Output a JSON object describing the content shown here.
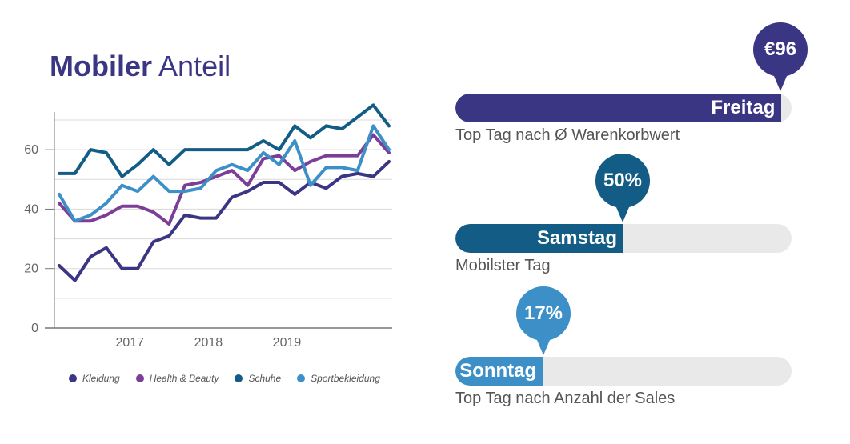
{
  "title": {
    "bold": "Mobiler",
    "light": "Anteil"
  },
  "chart_data": {
    "type": "line",
    "ylim": [
      0,
      70
    ],
    "yticks": [
      0,
      20,
      40,
      60
    ],
    "xticks": [
      {
        "label": "2017",
        "x": 2017.0
      },
      {
        "label": "2018",
        "x": 2018.0
      },
      {
        "label": "2019",
        "x": 2019.0
      }
    ],
    "x": [
      2016.1,
      2016.3,
      2016.5,
      2016.7,
      2016.9,
      2017.1,
      2017.3,
      2017.5,
      2017.7,
      2017.9,
      2018.1,
      2018.3,
      2018.5,
      2018.7,
      2018.9,
      2019.1,
      2019.3,
      2019.5,
      2019.7,
      2019.9,
      2020.1,
      2020.3
    ],
    "series": [
      {
        "name": "Kleidung",
        "color": "#3b3684",
        "values": [
          21,
          16,
          24,
          27,
          20,
          20,
          29,
          31,
          38,
          37,
          37,
          44,
          46,
          49,
          49,
          45,
          49,
          47,
          51,
          52,
          51,
          56
        ]
      },
      {
        "name": "Health & Beauty",
        "color": "#7c3f98",
        "values": [
          42,
          36,
          36,
          38,
          41,
          41,
          39,
          35,
          48,
          49,
          51,
          53,
          48,
          57,
          58,
          53,
          56,
          58,
          58,
          58,
          65,
          59
        ]
      },
      {
        "name": "Schuhe",
        "color": "#135c85",
        "values": [
          52,
          52,
          60,
          59,
          51,
          55,
          60,
          55,
          60,
          60,
          60,
          60,
          60,
          63,
          60,
          68,
          64,
          68,
          67,
          71,
          75,
          68
        ]
      },
      {
        "name": "Sportbekleidung",
        "color": "#3d8fc8",
        "values": [
          45,
          36,
          38,
          42,
          48,
          46,
          51,
          46,
          46,
          47,
          53,
          55,
          53,
          59,
          55,
          63,
          48,
          54,
          54,
          53,
          68,
          60
        ]
      }
    ]
  },
  "stats": [
    {
      "value": "€96",
      "bar_label": "Freitag",
      "caption": "Top Tag nach Ø Warenkorbwert",
      "level": 0.97,
      "color": "#3b3684"
    },
    {
      "value": "50%",
      "bar_label": "Samstag",
      "caption": "Mobilster Tag",
      "level": 0.5,
      "color": "#135c85"
    },
    {
      "value": "17%",
      "bar_label": "Sonntag",
      "caption": "Top Tag nach Anzahl der Sales",
      "level": 0.26,
      "color": "#3d8fc8"
    }
  ]
}
